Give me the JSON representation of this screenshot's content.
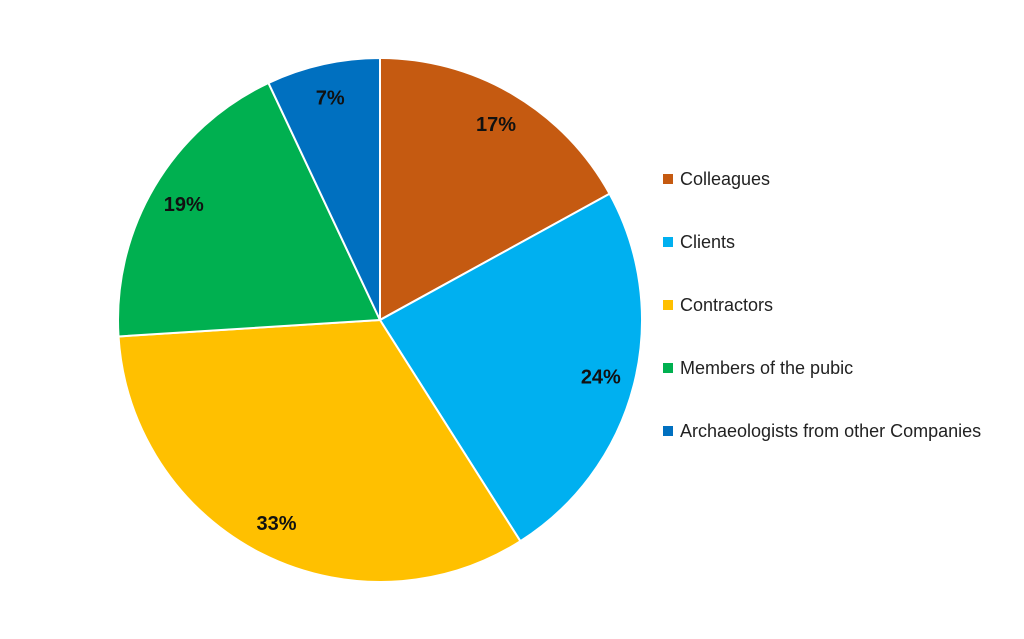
{
  "chart_data": {
    "type": "pie",
    "title": "",
    "start_angle": "top",
    "direction": "clockwise",
    "legend_position": "right",
    "slices": [
      {
        "label": "Colleagues",
        "value": 17,
        "display": "17%",
        "color": "#C55A11"
      },
      {
        "label": "Clients",
        "value": 24,
        "display": "24%",
        "color": "#00B0F0"
      },
      {
        "label": "Contractors",
        "value": 33,
        "display": "33%",
        "color": "#FFC000"
      },
      {
        "label": "Members of the pubic",
        "value": 19,
        "display": "19%",
        "color": "#00B050"
      },
      {
        "label": "Archaeologists from other Companies",
        "value": 7,
        "display": "7%",
        "color": "#0070C0"
      }
    ]
  }
}
